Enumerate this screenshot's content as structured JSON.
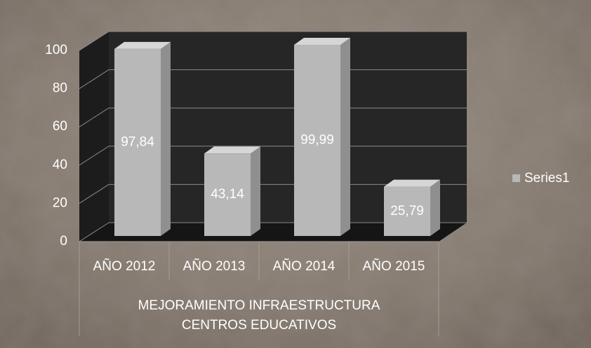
{
  "chart_data": {
    "type": "bar",
    "categories": [
      "AÑO 2012",
      "AÑO 2013",
      "AÑO 2014",
      "AÑO 2015"
    ],
    "group_label": [
      "MEJORAMIENTO INFRAESTRUCTURA",
      "CENTROS EDUCATIVOS"
    ],
    "series": [
      {
        "name": "Series1",
        "color": "#b8b8b8",
        "values": [
          97.84,
          43.14,
          99.99,
          25.79
        ],
        "value_labels": [
          "97,84",
          "43,14",
          "99,99",
          "25,79"
        ]
      }
    ],
    "ylim": [
      0,
      100
    ],
    "yticks": [
      0,
      20,
      40,
      60,
      80,
      100
    ],
    "grid": true,
    "legend": "right"
  }
}
